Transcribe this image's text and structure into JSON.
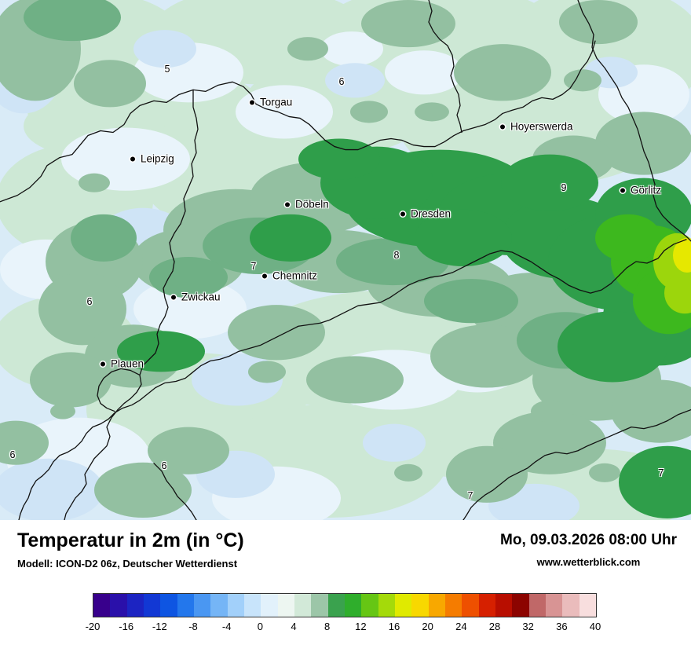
{
  "map": {
    "cities": [
      {
        "name": "Torgau"
      },
      {
        "name": "Hoyerswerda"
      },
      {
        "name": "Leipzig"
      },
      {
        "name": "Döbeln"
      },
      {
        "name": "Dresden"
      },
      {
        "name": "Görlitz"
      },
      {
        "name": "Chemnitz"
      },
      {
        "name": "Zwickau"
      },
      {
        "name": "Plauen"
      }
    ],
    "readings": [
      {
        "value": "5"
      },
      {
        "value": "6"
      },
      {
        "value": "9"
      },
      {
        "value": "7"
      },
      {
        "value": "8"
      },
      {
        "value": "6"
      },
      {
        "value": "6"
      },
      {
        "value": "6"
      },
      {
        "value": "7"
      },
      {
        "value": "7"
      }
    ]
  },
  "panel": {
    "title": "Temperatur in 2m (in °C)",
    "model": "Modell: ICON-D2 06z, Deutscher Wetterdienst",
    "datetime": "Mo, 09.03.2026 08:00 Uhr",
    "website": "www.wetterblick.com"
  },
  "legend": {
    "ticks": [
      "-20",
      "-16",
      "-12",
      "-8",
      "-4",
      "0",
      "4",
      "8",
      "12",
      "16",
      "20",
      "24",
      "28",
      "32",
      "36",
      "40"
    ],
    "colors": [
      "#38008c",
      "#2a10aa",
      "#1c24c2",
      "#1238d4",
      "#0e55e2",
      "#2377ec",
      "#4a97f2",
      "#75b5f6",
      "#a2d0fa",
      "#c8e4fb",
      "#e2f1fb",
      "#edf6f1",
      "#d2e9d8",
      "#9cc6a8",
      "#3aa24e",
      "#2fae2c",
      "#66c614",
      "#a4da0a",
      "#e0ea00",
      "#f8d800",
      "#f8a800",
      "#f57c00",
      "#ee5000",
      "#d62000",
      "#b80e00",
      "#8c0400",
      "#c06868",
      "#d89494",
      "#eabcbc",
      "#f8dede"
    ]
  },
  "map_colors": {
    "background": "#d9ebf7",
    "pale_green": "#cde8d5",
    "sage_green": "#93c0a1",
    "dark_green": "#2f9e4a",
    "bright_green": "#3db81e",
    "yellow": "#e6e800",
    "border": "#111111"
  }
}
